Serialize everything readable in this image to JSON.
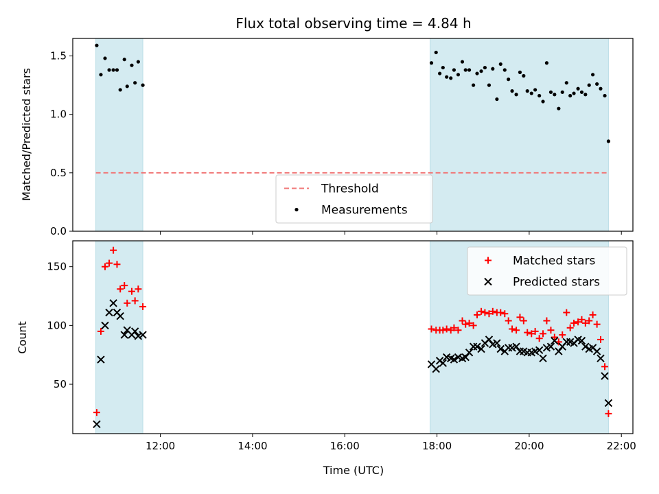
{
  "chart_data": {
    "title": "Flux total observing time = 4.84 h",
    "xlabel": "Time (UTC)",
    "x_tick_labels": [
      "12:00",
      "14:00",
      "16:00",
      "18:00",
      "20:00",
      "22:00"
    ],
    "x_ticks_hours": [
      12,
      14,
      16,
      18,
      20,
      22
    ],
    "xlim_hours": [
      10.1,
      22.25
    ],
    "observing_windows_hours": [
      [
        10.6,
        11.62
      ],
      [
        17.85,
        21.72
      ]
    ],
    "shade_color": "#d4ebf1",
    "panels": [
      {
        "type": "scatter",
        "ylabel": "Matched/Predicted stars",
        "ylim": [
          0,
          1.65
        ],
        "y_ticks": [
          0,
          0.5,
          1.0,
          1.5
        ],
        "y_tick_labels": [
          "0.0",
          "0.5",
          "1.0",
          "1.5"
        ],
        "threshold": {
          "name": "Threshold",
          "value": 0.5,
          "x_range": [
            10.6,
            21.72
          ],
          "color": "#f07878"
        },
        "legend_position": "lower-center",
        "series": [
          {
            "name": "Measurements",
            "marker": "dot",
            "color": "#000000",
            "x": [
              10.62,
              10.71,
              10.8,
              10.89,
              10.98,
              11.06,
              11.13,
              11.22,
              11.28,
              11.38,
              11.45,
              11.52,
              11.62,
              17.88,
              17.98,
              18.06,
              18.13,
              18.21,
              18.3,
              18.37,
              18.46,
              18.55,
              18.62,
              18.7,
              18.79,
              18.87,
              18.96,
              19.04,
              19.13,
              19.21,
              19.3,
              19.38,
              19.47,
              19.55,
              19.63,
              19.72,
              19.8,
              19.88,
              19.96,
              20.05,
              20.13,
              20.22,
              20.3,
              20.38,
              20.47,
              20.55,
              20.64,
              20.72,
              20.81,
              20.89,
              20.97,
              21.06,
              21.14,
              21.22,
              21.3,
              21.38,
              21.47,
              21.55,
              21.64,
              21.72
            ],
            "y": [
              1.59,
              1.34,
              1.48,
              1.38,
              1.38,
              1.38,
              1.21,
              1.47,
              1.24,
              1.42,
              1.27,
              1.45,
              1.25,
              1.44,
              1.53,
              1.35,
              1.4,
              1.32,
              1.31,
              1.38,
              1.34,
              1.45,
              1.38,
              1.38,
              1.25,
              1.35,
              1.37,
              1.4,
              1.25,
              1.39,
              1.13,
              1.43,
              1.38,
              1.3,
              1.2,
              1.17,
              1.36,
              1.33,
              1.2,
              1.18,
              1.21,
              1.16,
              1.11,
              1.44,
              1.19,
              1.17,
              1.05,
              1.19,
              1.27,
              1.16,
              1.18,
              1.22,
              1.19,
              1.17,
              1.25,
              1.34,
              1.26,
              1.22,
              1.16,
              0.77
            ]
          }
        ]
      },
      {
        "type": "scatter",
        "ylabel": "Count",
        "ylim": [
          8,
          172
        ],
        "y_ticks": [
          50,
          100,
          150
        ],
        "y_tick_labels": [
          "50",
          "100",
          "150"
        ],
        "legend_position": "upper-right",
        "series": [
          {
            "name": "Matched stars",
            "marker": "plus",
            "color": "#ff0000",
            "x": [
              10.62,
              10.71,
              10.8,
              10.89,
              10.98,
              11.06,
              11.13,
              11.22,
              11.28,
              11.38,
              11.45,
              11.52,
              11.62,
              17.88,
              17.98,
              18.06,
              18.13,
              18.21,
              18.3,
              18.37,
              18.46,
              18.55,
              18.62,
              18.7,
              18.79,
              18.87,
              18.96,
              19.04,
              19.13,
              19.21,
              19.3,
              19.38,
              19.47,
              19.55,
              19.63,
              19.72,
              19.8,
              19.88,
              19.96,
              20.05,
              20.13,
              20.22,
              20.3,
              20.38,
              20.47,
              20.55,
              20.64,
              20.72,
              20.81,
              20.89,
              20.97,
              21.06,
              21.14,
              21.22,
              21.3,
              21.38,
              21.47,
              21.55,
              21.64,
              21.72
            ],
            "y": [
              26,
              95,
              150,
              153,
              164,
              152,
              131,
              134,
              119,
              129,
              121,
              131,
              116,
              97,
              96,
              96,
              96,
              97,
              96,
              98,
              96,
              104,
              101,
              102,
              100,
              109,
              112,
              111,
              110,
              112,
              111,
              111,
              110,
              104,
              97,
              96,
              107,
              104,
              94,
              93,
              95,
              89,
              93,
              104,
              96,
              90,
              86,
              92,
              111,
              98,
              102,
              103,
              105,
              102,
              104,
              109,
              101,
              88,
              65,
              25
            ]
          },
          {
            "name": "Predicted stars",
            "marker": "x",
            "color": "#000000",
            "x": [
              10.62,
              10.71,
              10.8,
              10.89,
              10.98,
              11.06,
              11.13,
              11.22,
              11.28,
              11.38,
              11.45,
              11.52,
              11.62,
              17.88,
              17.98,
              18.06,
              18.13,
              18.21,
              18.3,
              18.37,
              18.46,
              18.55,
              18.62,
              18.7,
              18.79,
              18.87,
              18.96,
              19.04,
              19.13,
              19.21,
              19.3,
              19.38,
              19.47,
              19.55,
              19.63,
              19.72,
              19.8,
              19.88,
              19.96,
              20.05,
              20.13,
              20.22,
              20.3,
              20.38,
              20.47,
              20.55,
              20.64,
              20.72,
              20.81,
              20.89,
              20.97,
              21.06,
              21.14,
              21.22,
              21.3,
              21.38,
              21.47,
              21.55,
              21.64,
              21.72
            ],
            "y": [
              16,
              71,
              100,
              111,
              119,
              111,
              108,
              92,
              96,
              92,
              95,
              91,
              92,
              67,
              63,
              70,
              68,
              73,
              72,
              71,
              73,
              72,
              73,
              77,
              82,
              82,
              80,
              85,
              88,
              84,
              85,
              80,
              78,
              81,
              81,
              82,
              78,
              78,
              77,
              77,
              78,
              79,
              72,
              81,
              82,
              87,
              78,
              82,
              86,
              86,
              85,
              88,
              87,
              82,
              80,
              81,
              78,
              72,
              57,
              34
            ]
          }
        ]
      }
    ]
  }
}
